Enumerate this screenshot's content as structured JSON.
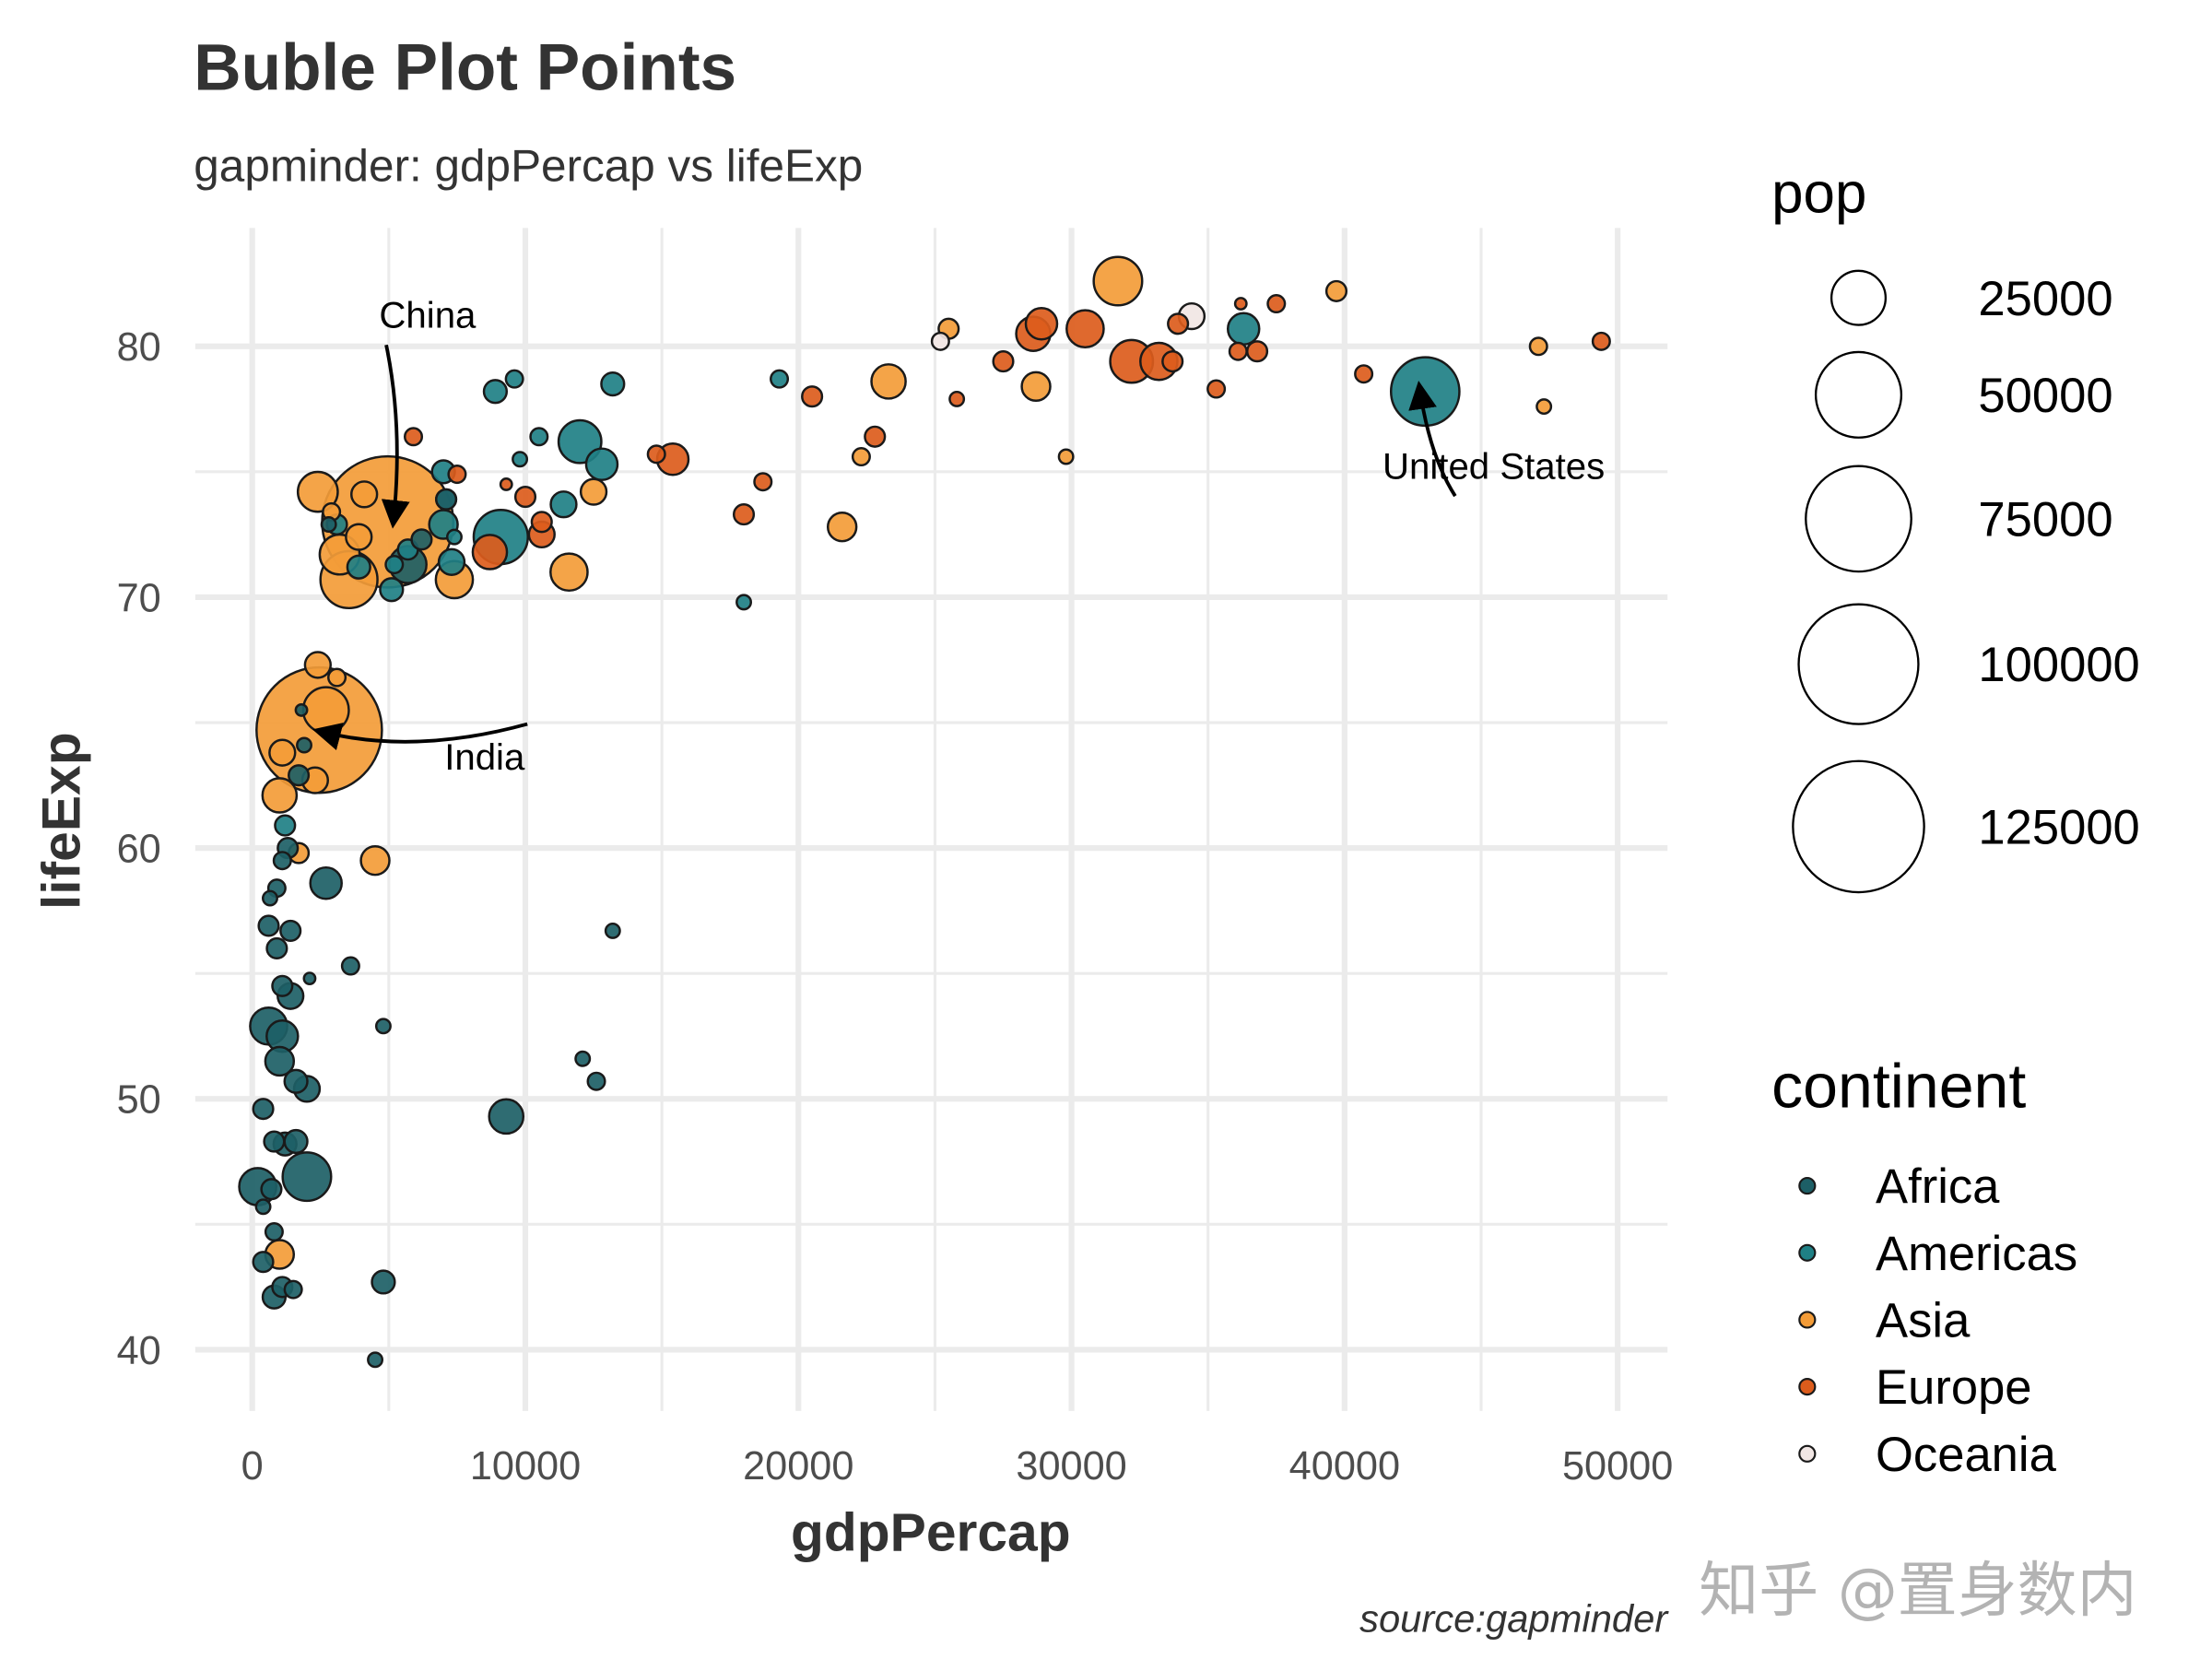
{
  "chart_data": {
    "type": "scatter",
    "subtype": "bubble",
    "title": "Buble Plot Points",
    "subtitle": "gapminder: gdpPercap vs lifeExp",
    "xlabel": "gdpPercap",
    "ylabel": "lifeExp",
    "caption": "source:gapminder",
    "xlim": [
      -2000,
      51500
    ],
    "ylim": [
      38,
      84.5
    ],
    "x_ticks": [
      0,
      10000,
      20000,
      30000,
      40000,
      50000
    ],
    "x_tick_labels": [
      "0",
      "10000",
      "20000",
      "30000",
      "40000",
      "50000"
    ],
    "y_ticks": [
      40,
      50,
      60,
      70,
      80
    ],
    "y_tick_labels": [
      "40",
      "50",
      "60",
      "70",
      "80"
    ],
    "grid": true,
    "legend_position": "right",
    "size_legend": {
      "title": "pop",
      "entries": [
        {
          "label": "25000",
          "r": 19
        },
        {
          "label": "50000",
          "r": 30
        },
        {
          "label": "75000",
          "r": 37
        },
        {
          "label": "100000",
          "r": 42
        },
        {
          "label": "125000",
          "r": 46
        }
      ]
    },
    "color_legend": {
      "title": "continent",
      "entries": [
        {
          "label": "Africa",
          "color": "#1d5f66"
        },
        {
          "label": "Americas",
          "color": "#1f8085"
        },
        {
          "label": "Asia",
          "color": "#f39c38"
        },
        {
          "label": "Europe",
          "color": "#dc5c1c"
        },
        {
          "label": "Oceania",
          "color": "#f1e6e4"
        }
      ]
    },
    "annotations": [
      {
        "label": "China",
        "x": 4959,
        "y": 73.0,
        "label_x": 6500,
        "label_y": 81.3
      },
      {
        "label": "India",
        "x": 2452,
        "y": 64.7,
        "label_x": 8600,
        "label_y": 63.5
      },
      {
        "label": "United States",
        "x": 42952,
        "y": 78.2,
        "label_x": 45500,
        "label_y": 75.3
      }
    ],
    "points": [
      {
        "continent": "Asia",
        "gdpPercap": 4959,
        "lifeExp": 73.0,
        "r": 46,
        "label": "China"
      },
      {
        "continent": "Asia",
        "gdpPercap": 2452,
        "lifeExp": 64.7,
        "r": 44,
        "label": "India"
      },
      {
        "continent": "Americas",
        "gdpPercap": 42952,
        "lifeExp": 78.2,
        "r": 24,
        "label": "United States"
      },
      {
        "continent": "Asia",
        "gdpPercap": 3541,
        "lifeExp": 70.7,
        "r": 20
      },
      {
        "continent": "Asia",
        "gdpPercap": 2400,
        "lifeExp": 74.2,
        "r": 14
      },
      {
        "continent": "Asia",
        "gdpPercap": 4100,
        "lifeExp": 74.1,
        "r": 9
      },
      {
        "continent": "Asia",
        "gdpPercap": 2900,
        "lifeExp": 73.4,
        "r": 6
      },
      {
        "continent": "Asia",
        "gdpPercap": 3200,
        "lifeExp": 71.7,
        "r": 14
      },
      {
        "continent": "Asia",
        "gdpPercap": 3900,
        "lifeExp": 72.4,
        "r": 9
      },
      {
        "continent": "Asia",
        "gdpPercap": 7400,
        "lifeExp": 70.7,
        "r": 13
      },
      {
        "continent": "Asia",
        "gdpPercap": 11600,
        "lifeExp": 71.0,
        "r": 13
      },
      {
        "continent": "Asia",
        "gdpPercap": 12500,
        "lifeExp": 74.2,
        "r": 9
      },
      {
        "continent": "Asia",
        "gdpPercap": 2400,
        "lifeExp": 67.3,
        "r": 9
      },
      {
        "continent": "Asia",
        "gdpPercap": 3100,
        "lifeExp": 66.8,
        "r": 6
      },
      {
        "continent": "Asia",
        "gdpPercap": 2700,
        "lifeExp": 65.5,
        "r": 16
      },
      {
        "continent": "Asia",
        "gdpPercap": 1100,
        "lifeExp": 63.8,
        "r": 9
      },
      {
        "continent": "Asia",
        "gdpPercap": 2300,
        "lifeExp": 62.7,
        "r": 9
      },
      {
        "continent": "Asia",
        "gdpPercap": 1000,
        "lifeExp": 62.1,
        "r": 12
      },
      {
        "continent": "Asia",
        "gdpPercap": 1700,
        "lifeExp": 59.8,
        "r": 7
      },
      {
        "continent": "Asia",
        "gdpPercap": 4500,
        "lifeExp": 59.5,
        "r": 10
      },
      {
        "continent": "Asia",
        "gdpPercap": 1000,
        "lifeExp": 43.8,
        "r": 10
      },
      {
        "continent": "Asia",
        "gdpPercap": 23300,
        "lifeExp": 78.6,
        "r": 12
      },
      {
        "continent": "Asia",
        "gdpPercap": 21600,
        "lifeExp": 72.8,
        "r": 10
      },
      {
        "continent": "Asia",
        "gdpPercap": 22300,
        "lifeExp": 75.6,
        "r": 6
      },
      {
        "continent": "Asia",
        "gdpPercap": 25500,
        "lifeExp": 80.7,
        "r": 7
      },
      {
        "continent": "Asia",
        "gdpPercap": 28700,
        "lifeExp": 78.4,
        "r": 10
      },
      {
        "continent": "Asia",
        "gdpPercap": 31700,
        "lifeExp": 82.6,
        "r": 17
      },
      {
        "continent": "Asia",
        "gdpPercap": 29800,
        "lifeExp": 75.6,
        "r": 5
      },
      {
        "continent": "Asia",
        "gdpPercap": 39700,
        "lifeExp": 82.2,
        "r": 7
      },
      {
        "continent": "Asia",
        "gdpPercap": 47100,
        "lifeExp": 80.0,
        "r": 6
      },
      {
        "continent": "Asia",
        "gdpPercap": 47300,
        "lifeExp": 77.6,
        "r": 5
      },
      {
        "continent": "Europe",
        "gdpPercap": 5900,
        "lifeExp": 76.4,
        "r": 6
      },
      {
        "continent": "Europe",
        "gdpPercap": 7500,
        "lifeExp": 74.9,
        "r": 6
      },
      {
        "continent": "Europe",
        "gdpPercap": 8700,
        "lifeExp": 71.8,
        "r": 12
      },
      {
        "continent": "Europe",
        "gdpPercap": 9300,
        "lifeExp": 74.5,
        "r": 4
      },
      {
        "continent": "Europe",
        "gdpPercap": 10000,
        "lifeExp": 74.0,
        "r": 7
      },
      {
        "continent": "Europe",
        "gdpPercap": 10600,
        "lifeExp": 73.0,
        "r": 7
      },
      {
        "continent": "Europe",
        "gdpPercap": 10600,
        "lifeExp": 72.5,
        "r": 9
      },
      {
        "continent": "Europe",
        "gdpPercap": 14800,
        "lifeExp": 75.7,
        "r": 6
      },
      {
        "continent": "Europe",
        "gdpPercap": 15400,
        "lifeExp": 75.5,
        "r": 11
      },
      {
        "continent": "Europe",
        "gdpPercap": 18000,
        "lifeExp": 73.3,
        "r": 7
      },
      {
        "continent": "Europe",
        "gdpPercap": 18700,
        "lifeExp": 74.6,
        "r": 6
      },
      {
        "continent": "Europe",
        "gdpPercap": 20500,
        "lifeExp": 78.0,
        "r": 7
      },
      {
        "continent": "Europe",
        "gdpPercap": 22800,
        "lifeExp": 76.4,
        "r": 7
      },
      {
        "continent": "Europe",
        "gdpPercap": 25800,
        "lifeExp": 77.9,
        "r": 5
      },
      {
        "continent": "Europe",
        "gdpPercap": 27500,
        "lifeExp": 79.4,
        "r": 7
      },
      {
        "continent": "Europe",
        "gdpPercap": 28600,
        "lifeExp": 80.5,
        "r": 12
      },
      {
        "continent": "Europe",
        "gdpPercap": 28900,
        "lifeExp": 80.9,
        "r": 11
      },
      {
        "continent": "Europe",
        "gdpPercap": 30500,
        "lifeExp": 80.7,
        "r": 13
      },
      {
        "continent": "Europe",
        "gdpPercap": 32200,
        "lifeExp": 79.4,
        "r": 15
      },
      {
        "continent": "Europe",
        "gdpPercap": 33200,
        "lifeExp": 79.4,
        "r": 13
      },
      {
        "continent": "Europe",
        "gdpPercap": 33700,
        "lifeExp": 79.4,
        "r": 7
      },
      {
        "continent": "Europe",
        "gdpPercap": 33900,
        "lifeExp": 80.9,
        "r": 7
      },
      {
        "continent": "Europe",
        "gdpPercap": 35300,
        "lifeExp": 78.3,
        "r": 6
      },
      {
        "continent": "Europe",
        "gdpPercap": 36100,
        "lifeExp": 79.8,
        "r": 6
      },
      {
        "continent": "Europe",
        "gdpPercap": 36200,
        "lifeExp": 81.7,
        "r": 4
      },
      {
        "continent": "Europe",
        "gdpPercap": 36800,
        "lifeExp": 79.8,
        "r": 7
      },
      {
        "continent": "Europe",
        "gdpPercap": 37500,
        "lifeExp": 81.7,
        "r": 6
      },
      {
        "continent": "Europe",
        "gdpPercap": 40700,
        "lifeExp": 78.9,
        "r": 6
      },
      {
        "continent": "Europe",
        "gdpPercap": 49400,
        "lifeExp": 80.2,
        "r": 6
      },
      {
        "continent": "Oceania",
        "gdpPercap": 25200,
        "lifeExp": 80.2,
        "r": 6
      },
      {
        "continent": "Oceania",
        "gdpPercap": 34400,
        "lifeExp": 81.2,
        "r": 9
      },
      {
        "continent": "Americas",
        "gdpPercap": 9100,
        "lifeExp": 72.4,
        "r": 19
      },
      {
        "continent": "Americas",
        "gdpPercap": 12000,
        "lifeExp": 76.2,
        "r": 15
      },
      {
        "continent": "Americas",
        "gdpPercap": 12800,
        "lifeExp": 75.3,
        "r": 11
      },
      {
        "continent": "Americas",
        "gdpPercap": 11400,
        "lifeExp": 73.7,
        "r": 9
      },
      {
        "continent": "Americas",
        "gdpPercap": 13200,
        "lifeExp": 78.5,
        "r": 8
      },
      {
        "continent": "Americas",
        "gdpPercap": 9600,
        "lifeExp": 78.7,
        "r": 6
      },
      {
        "continent": "Americas",
        "gdpPercap": 8900,
        "lifeExp": 78.2,
        "r": 8
      },
      {
        "continent": "Americas",
        "gdpPercap": 10500,
        "lifeExp": 76.4,
        "r": 6
      },
      {
        "continent": "Americas",
        "gdpPercap": 9800,
        "lifeExp": 75.5,
        "r": 5
      },
      {
        "continent": "Americas",
        "gdpPercap": 7000,
        "lifeExp": 75.0,
        "r": 8
      },
      {
        "continent": "Americas",
        "gdpPercap": 7100,
        "lifeExp": 73.9,
        "r": 7
      },
      {
        "continent": "Americas",
        "gdpPercap": 7000,
        "lifeExp": 72.9,
        "r": 10
      },
      {
        "continent": "Americas",
        "gdpPercap": 7400,
        "lifeExp": 72.4,
        "r": 5
      },
      {
        "continent": "Americas",
        "gdpPercap": 5700,
        "lifeExp": 71.9,
        "r": 7
      },
      {
        "continent": "Americas",
        "gdpPercap": 5200,
        "lifeExp": 71.3,
        "r": 6
      },
      {
        "continent": "Americas",
        "gdpPercap": 5100,
        "lifeExp": 70.3,
        "r": 8
      },
      {
        "continent": "Americas",
        "gdpPercap": 7300,
        "lifeExp": 71.4,
        "r": 9
      },
      {
        "continent": "Americas",
        "gdpPercap": 3900,
        "lifeExp": 71.2,
        "r": 8
      },
      {
        "continent": "Americas",
        "gdpPercap": 3100,
        "lifeExp": 72.9,
        "r": 7
      },
      {
        "continent": "Americas",
        "gdpPercap": 19300,
        "lifeExp": 78.7,
        "r": 6
      },
      {
        "continent": "Americas",
        "gdpPercap": 18000,
        "lifeExp": 69.8,
        "r": 5
      },
      {
        "continent": "Americas",
        "gdpPercap": 36300,
        "lifeExp": 80.7,
        "r": 11
      },
      {
        "continent": "Americas",
        "gdpPercap": 1200,
        "lifeExp": 60.9,
        "r": 7
      },
      {
        "continent": "Africa",
        "gdpPercap": 5700,
        "lifeExp": 71.3,
        "r": 13
      },
      {
        "continent": "Africa",
        "gdpPercap": 6200,
        "lifeExp": 72.3,
        "r": 7
      },
      {
        "continent": "Africa",
        "gdpPercap": 7100,
        "lifeExp": 73.9,
        "r": 7
      },
      {
        "continent": "Africa",
        "gdpPercap": 2800,
        "lifeExp": 72.9,
        "r": 5
      },
      {
        "continent": "Africa",
        "gdpPercap": 1800,
        "lifeExp": 65.5,
        "r": 4
      },
      {
        "continent": "Africa",
        "gdpPercap": 1900,
        "lifeExp": 64.1,
        "r": 5
      },
      {
        "continent": "Africa",
        "gdpPercap": 1700,
        "lifeExp": 62.9,
        "r": 7
      },
      {
        "continent": "Africa",
        "gdpPercap": 1300,
        "lifeExp": 60.0,
        "r": 7
      },
      {
        "continent": "Africa",
        "gdpPercap": 1100,
        "lifeExp": 59.5,
        "r": 6
      },
      {
        "continent": "Africa",
        "gdpPercap": 900,
        "lifeExp": 58.4,
        "r": 6
      },
      {
        "continent": "Africa",
        "gdpPercap": 650,
        "lifeExp": 58.0,
        "r": 5
      },
      {
        "continent": "Africa",
        "gdpPercap": 2700,
        "lifeExp": 58.6,
        "r": 11
      },
      {
        "continent": "Africa",
        "gdpPercap": 600,
        "lifeExp": 56.9,
        "r": 7
      },
      {
        "continent": "Africa",
        "gdpPercap": 1400,
        "lifeExp": 56.7,
        "r": 7
      },
      {
        "continent": "Africa",
        "gdpPercap": 900,
        "lifeExp": 56.0,
        "r": 7
      },
      {
        "continent": "Africa",
        "gdpPercap": 3600,
        "lifeExp": 55.3,
        "r": 6
      },
      {
        "continent": "Africa",
        "gdpPercap": 2100,
        "lifeExp": 54.8,
        "r": 4
      },
      {
        "continent": "Africa",
        "gdpPercap": 1100,
        "lifeExp": 54.5,
        "r": 7
      },
      {
        "continent": "Africa",
        "gdpPercap": 1400,
        "lifeExp": 54.1,
        "r": 9
      },
      {
        "continent": "Africa",
        "gdpPercap": 600,
        "lifeExp": 52.9,
        "r": 13
      },
      {
        "continent": "Africa",
        "gdpPercap": 1100,
        "lifeExp": 52.5,
        "r": 11
      },
      {
        "continent": "Africa",
        "gdpPercap": 1000,
        "lifeExp": 51.5,
        "r": 10
      },
      {
        "continent": "Africa",
        "gdpPercap": 1600,
        "lifeExp": 50.7,
        "r": 8
      },
      {
        "continent": "Africa",
        "gdpPercap": 2000,
        "lifeExp": 50.4,
        "r": 9
      },
      {
        "continent": "Africa",
        "gdpPercap": 4800,
        "lifeExp": 52.9,
        "r": 5
      },
      {
        "continent": "Africa",
        "gdpPercap": 400,
        "lifeExp": 49.6,
        "r": 7
      },
      {
        "continent": "Africa",
        "gdpPercap": 9300,
        "lifeExp": 49.3,
        "r": 12
      },
      {
        "continent": "Africa",
        "gdpPercap": 12100,
        "lifeExp": 51.6,
        "r": 5
      },
      {
        "continent": "Africa",
        "gdpPercap": 12600,
        "lifeExp": 50.7,
        "r": 6
      },
      {
        "continent": "Africa",
        "gdpPercap": 13200,
        "lifeExp": 56.7,
        "r": 5
      },
      {
        "continent": "Africa",
        "gdpPercap": 800,
        "lifeExp": 48.3,
        "r": 7
      },
      {
        "continent": "Africa",
        "gdpPercap": 1200,
        "lifeExp": 48.2,
        "r": 8
      },
      {
        "continent": "Africa",
        "gdpPercap": 1600,
        "lifeExp": 48.3,
        "r": 8
      },
      {
        "continent": "Africa",
        "gdpPercap": 2000,
        "lifeExp": 46.9,
        "r": 17
      },
      {
        "continent": "Africa",
        "gdpPercap": 200,
        "lifeExp": 46.5,
        "r": 13
      },
      {
        "continent": "Africa",
        "gdpPercap": 700,
        "lifeExp": 46.4,
        "r": 7
      },
      {
        "continent": "Africa",
        "gdpPercap": 400,
        "lifeExp": 45.7,
        "r": 5
      },
      {
        "continent": "Africa",
        "gdpPercap": 800,
        "lifeExp": 44.7,
        "r": 6
      },
      {
        "continent": "Africa",
        "gdpPercap": 400,
        "lifeExp": 43.5,
        "r": 7
      },
      {
        "continent": "Africa",
        "gdpPercap": 1100,
        "lifeExp": 42.5,
        "r": 7
      },
      {
        "continent": "Africa",
        "gdpPercap": 800,
        "lifeExp": 42.1,
        "r": 8
      },
      {
        "continent": "Africa",
        "gdpPercap": 1500,
        "lifeExp": 42.4,
        "r": 6
      },
      {
        "continent": "Africa",
        "gdpPercap": 4800,
        "lifeExp": 42.7,
        "r": 8
      },
      {
        "continent": "Africa",
        "gdpPercap": 4500,
        "lifeExp": 39.6,
        "r": 5
      }
    ]
  },
  "watermark": "知乎 @置身数内"
}
